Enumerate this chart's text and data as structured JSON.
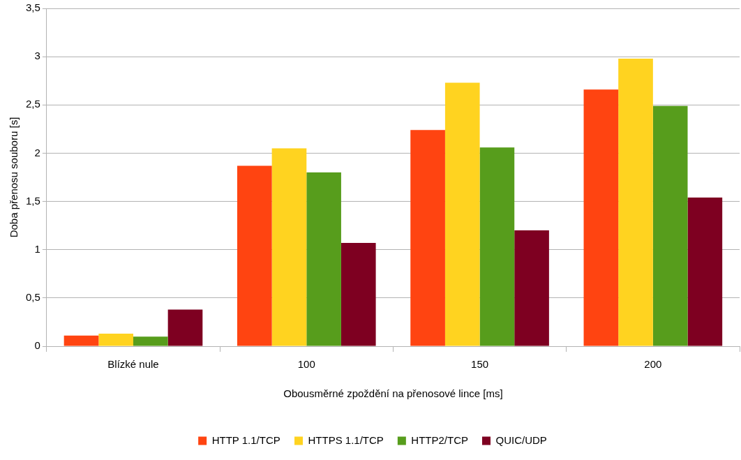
{
  "chart_data": {
    "type": "bar",
    "xlabel": "Obousměrné zpoždění na přenosové lince [ms]",
    "ylabel": "Doba přenosu souboru [s]",
    "categories": [
      "Blízké nule",
      "100",
      "150",
      "200"
    ],
    "series": [
      {
        "name": "HTTP 1.1/TCP",
        "color": "#ff4411",
        "values": [
          0.11,
          1.87,
          2.24,
          2.66
        ]
      },
      {
        "name": "HTTPS 1.1/TCP",
        "color": "#ffd320",
        "values": [
          0.13,
          2.05,
          2.73,
          2.98
        ]
      },
      {
        "name": "HTTP2/TCP",
        "color": "#579d1c",
        "values": [
          0.1,
          1.8,
          2.06,
          2.49
        ]
      },
      {
        "name": "QUIC/UDP",
        "color": "#7e0021",
        "values": [
          0.38,
          1.07,
          1.2,
          1.54
        ]
      }
    ],
    "ylim": [
      0,
      3.5
    ],
    "yticks": [
      0,
      {
        "value": 0.5,
        "label": "0,5"
      },
      1,
      {
        "value": 1.5,
        "label": "1,5"
      },
      2,
      {
        "value": 2.5,
        "label": "2,5"
      },
      3,
      {
        "value": 3.5,
        "label": "3,5"
      }
    ],
    "grid": "y",
    "legend": "bottom"
  }
}
